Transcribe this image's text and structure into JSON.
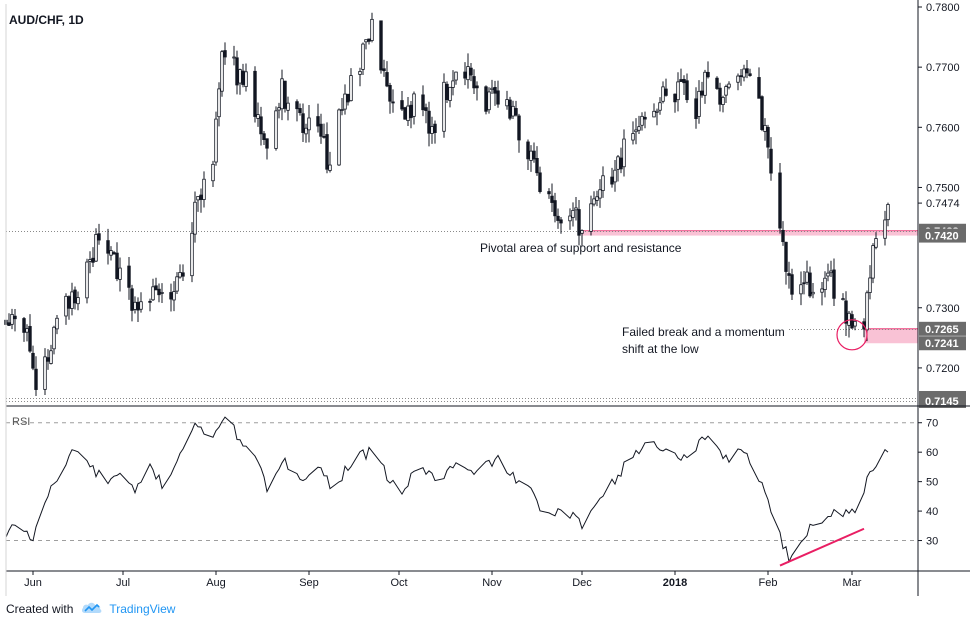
{
  "chart_data": [
    {
      "type": "candlestick",
      "title": "AUD/CHF, 1D",
      "ylim": [
        0.714,
        0.7805
      ],
      "y_ticks": [
        0.72,
        0.73,
        0.75,
        0.76,
        0.77,
        0.78
      ],
      "y_tick_labels": [
        "0.7200",
        "0.7300",
        "0.7500",
        "0.7600",
        "0.7700",
        "0.7800"
      ],
      "price_labels": [
        {
          "value": 0.7474,
          "label": "0.7474",
          "style": "plain"
        },
        {
          "value": 0.7428,
          "label": "0.7428",
          "style": "dark"
        },
        {
          "value": 0.742,
          "label": "0.7420",
          "style": "dark"
        },
        {
          "value": 0.7265,
          "label": "0.7265",
          "style": "dark"
        },
        {
          "value": 0.7241,
          "label": "0.7241",
          "style": "dark"
        },
        {
          "value": 0.715,
          "label": "0.7150",
          "style": "dark"
        },
        {
          "value": 0.7145,
          "label": "0.7145",
          "style": "dark"
        }
      ],
      "levels": [
        {
          "value": 0.7428,
          "style": "dotted",
          "from": "2017-05-23",
          "to": "2018-03-23"
        },
        {
          "value": 0.715,
          "style": "dotted",
          "from": "2017-05-23",
          "to": "2018-03-23"
        },
        {
          "value": 0.7145,
          "style": "dotted",
          "from": "2017-05-23",
          "to": "2018-03-23"
        },
        {
          "value": 0.7265,
          "style": "dotted",
          "from": "2018-02-08",
          "to": "2018-03-23"
        }
      ],
      "zones": [
        {
          "from_date": "2017-12-01",
          "to_date": "2018-03-23",
          "low": 0.742,
          "high": 0.7428,
          "color": "#f8bbd0"
        },
        {
          "from_date": "2018-03-05",
          "to_date": "2018-03-23",
          "low": 0.7241,
          "high": 0.7265,
          "color": "#f8bbd0"
        }
      ],
      "annotations": [
        {
          "text": "Pivotal area of support and resistance"
        },
        {
          "text": "Failed break and a momentum"
        },
        {
          "text": "shift at the low"
        }
      ],
      "circle": {
        "date": "2018-03-01",
        "value": 0.7255,
        "color": "#e91e63"
      },
      "anchors": [
        [
          "2017-05-23",
          0.7278
        ],
        [
          "2017-05-30",
          0.7268
        ],
        [
          "2017-06-02",
          0.7155
        ],
        [
          "2017-06-06",
          0.721
        ],
        [
          "2017-06-09",
          0.7275
        ],
        [
          "2017-06-15",
          0.732
        ],
        [
          "2017-06-21",
          0.738
        ],
        [
          "2017-06-23",
          0.743
        ],
        [
          "2017-06-29",
          0.737
        ],
        [
          "2017-07-05",
          0.729
        ],
        [
          "2017-07-12",
          0.7345
        ],
        [
          "2017-07-15",
          0.73
        ],
        [
          "2017-07-21",
          0.737
        ],
        [
          "2017-07-25",
          0.746
        ],
        [
          "2017-07-31",
          0.756
        ],
        [
          "2017-08-03",
          0.772
        ],
        [
          "2017-08-07",
          0.7695
        ],
        [
          "2017-08-12",
          0.768
        ],
        [
          "2017-08-15",
          0.76
        ],
        [
          "2017-08-18",
          0.756
        ],
        [
          "2017-08-23",
          0.766
        ],
        [
          "2017-08-30",
          0.76
        ],
        [
          "2017-09-04",
          0.761
        ],
        [
          "2017-09-07",
          0.754
        ],
        [
          "2017-09-13",
          0.765
        ],
        [
          "2017-09-19",
          0.772
        ],
        [
          "2017-09-23",
          0.777
        ],
        [
          "2017-09-27",
          0.766
        ],
        [
          "2017-10-03",
          0.76
        ],
        [
          "2017-10-07",
          0.766
        ],
        [
          "2017-10-12",
          0.76
        ],
        [
          "2017-10-18",
          0.768
        ],
        [
          "2017-10-23",
          0.77
        ],
        [
          "2017-10-29",
          0.764
        ],
        [
          "2017-11-03",
          0.766
        ],
        [
          "2017-11-10",
          0.76
        ],
        [
          "2017-11-16",
          0.751
        ],
        [
          "2017-11-21",
          0.747
        ],
        [
          "2017-11-28",
          0.745
        ],
        [
          "2017-12-01",
          0.7435
        ],
        [
          "2017-12-06",
          0.749
        ],
        [
          "2017-12-11",
          0.751
        ],
        [
          "2017-12-16",
          0.757
        ],
        [
          "2017-12-21",
          0.762
        ],
        [
          "2017-12-28",
          0.765
        ],
        [
          "2018-01-03",
          0.767
        ],
        [
          "2018-01-08",
          0.762
        ],
        [
          "2018-01-12",
          0.769
        ],
        [
          "2018-01-16",
          0.766
        ],
        [
          "2018-01-21",
          0.77
        ],
        [
          "2018-01-25",
          0.77
        ],
        [
          "2018-01-29",
          0.763
        ],
        [
          "2018-02-01",
          0.756
        ],
        [
          "2018-02-05",
          0.743
        ],
        [
          "2018-02-09",
          0.73
        ],
        [
          "2018-02-13",
          0.7355
        ],
        [
          "2018-02-17",
          0.732
        ],
        [
          "2018-02-22",
          0.734
        ],
        [
          "2018-02-27",
          0.729
        ],
        [
          "2018-03-01",
          0.727
        ],
        [
          "2018-03-05",
          0.727
        ],
        [
          "2018-03-08",
          0.74
        ],
        [
          "2018-03-11",
          0.745
        ],
        [
          "2018-03-13",
          0.7474
        ]
      ]
    },
    {
      "type": "line",
      "title": "RSI",
      "ylim": [
        20,
        75
      ],
      "y_ticks": [
        30,
        40,
        50,
        60,
        70
      ],
      "y_tick_labels": [
        "30",
        "40",
        "50",
        "60",
        "70"
      ],
      "dashed_levels": [
        30,
        70
      ],
      "line_color": "#131722",
      "anchors": [
        [
          "2017-05-23",
          31
        ],
        [
          "2017-05-27",
          37
        ],
        [
          "2017-06-01",
          30
        ],
        [
          "2017-06-05",
          44
        ],
        [
          "2017-06-10",
          52
        ],
        [
          "2017-06-15",
          62
        ],
        [
          "2017-06-20",
          55
        ],
        [
          "2017-06-25",
          50
        ],
        [
          "2017-06-30",
          52
        ],
        [
          "2017-07-05",
          46
        ],
        [
          "2017-07-10",
          55
        ],
        [
          "2017-07-15",
          48
        ],
        [
          "2017-07-20",
          60
        ],
        [
          "2017-07-25",
          70
        ],
        [
          "2017-07-30",
          62
        ],
        [
          "2017-08-03",
          72
        ],
        [
          "2017-08-08",
          66
        ],
        [
          "2017-08-13",
          60
        ],
        [
          "2017-08-18",
          48
        ],
        [
          "2017-08-24",
          56
        ],
        [
          "2017-08-30",
          52
        ],
        [
          "2017-09-04",
          55
        ],
        [
          "2017-09-09",
          48
        ],
        [
          "2017-09-16",
          58
        ],
        [
          "2017-09-22",
          60
        ],
        [
          "2017-09-27",
          52
        ],
        [
          "2017-10-02",
          46
        ],
        [
          "2017-10-08",
          56
        ],
        [
          "2017-10-14",
          50
        ],
        [
          "2017-10-20",
          56
        ],
        [
          "2017-10-26",
          52
        ],
        [
          "2017-11-02",
          58
        ],
        [
          "2017-11-08",
          52
        ],
        [
          "2017-11-14",
          46
        ],
        [
          "2017-11-20",
          38
        ],
        [
          "2017-11-26",
          40
        ],
        [
          "2017-12-01",
          35
        ],
        [
          "2017-12-07",
          46
        ],
        [
          "2017-12-13",
          52
        ],
        [
          "2017-12-19",
          60
        ],
        [
          "2017-12-25",
          64
        ],
        [
          "2017-12-31",
          58
        ],
        [
          "2018-01-06",
          60
        ],
        [
          "2018-01-12",
          66
        ],
        [
          "2018-01-18",
          58
        ],
        [
          "2018-01-24",
          60
        ],
        [
          "2018-01-29",
          52
        ],
        [
          "2018-02-03",
          38
        ],
        [
          "2018-02-07",
          26
        ],
        [
          "2018-02-09",
          23
        ],
        [
          "2018-02-12",
          30
        ],
        [
          "2018-02-16",
          36
        ],
        [
          "2018-02-20",
          38
        ],
        [
          "2018-02-24",
          41
        ],
        [
          "2018-02-28",
          38
        ],
        [
          "2018-03-03",
          43
        ],
        [
          "2018-03-07",
          52
        ],
        [
          "2018-03-10",
          58
        ],
        [
          "2018-03-13",
          60
        ]
      ],
      "divergence": {
        "from": [
          "2018-02-05",
          21.5
        ],
        "to": [
          "2018-03-05",
          34
        ],
        "color": "#e91e63"
      }
    }
  ],
  "x_axis": {
    "ticks": [
      {
        "date": "2017-06-01",
        "label": "Jun",
        "bold": false
      },
      {
        "date": "2017-07-01",
        "label": "Jul",
        "bold": false
      },
      {
        "date": "2017-08-01",
        "label": "Aug",
        "bold": false
      },
      {
        "date": "2017-09-01",
        "label": "Sep",
        "bold": false
      },
      {
        "date": "2017-10-01",
        "label": "Oct",
        "bold": false
      },
      {
        "date": "2017-11-01",
        "label": "Nov",
        "bold": false
      },
      {
        "date": "2017-12-01",
        "label": "Dec",
        "bold": false
      },
      {
        "date": "2018-01-01",
        "label": "2018",
        "bold": true
      },
      {
        "date": "2018-02-01",
        "label": "Feb",
        "bold": false
      },
      {
        "date": "2018-03-01",
        "label": "Mar",
        "bold": false
      }
    ],
    "start_date": "2017-05-23",
    "end_date": "2018-03-23"
  },
  "colors": {
    "candle_up": "#ffffff",
    "candle_down": "#131722",
    "candle_outline": "#131722",
    "zone": "#f8bbd0",
    "accent": "#e91e63",
    "dark_label": "#6b6b6b",
    "brand": "#2196f3"
  },
  "footer": {
    "created_with": "Created with",
    "brand": "TradingView",
    "logo_icon": "tradingview-cloud-icon"
  }
}
